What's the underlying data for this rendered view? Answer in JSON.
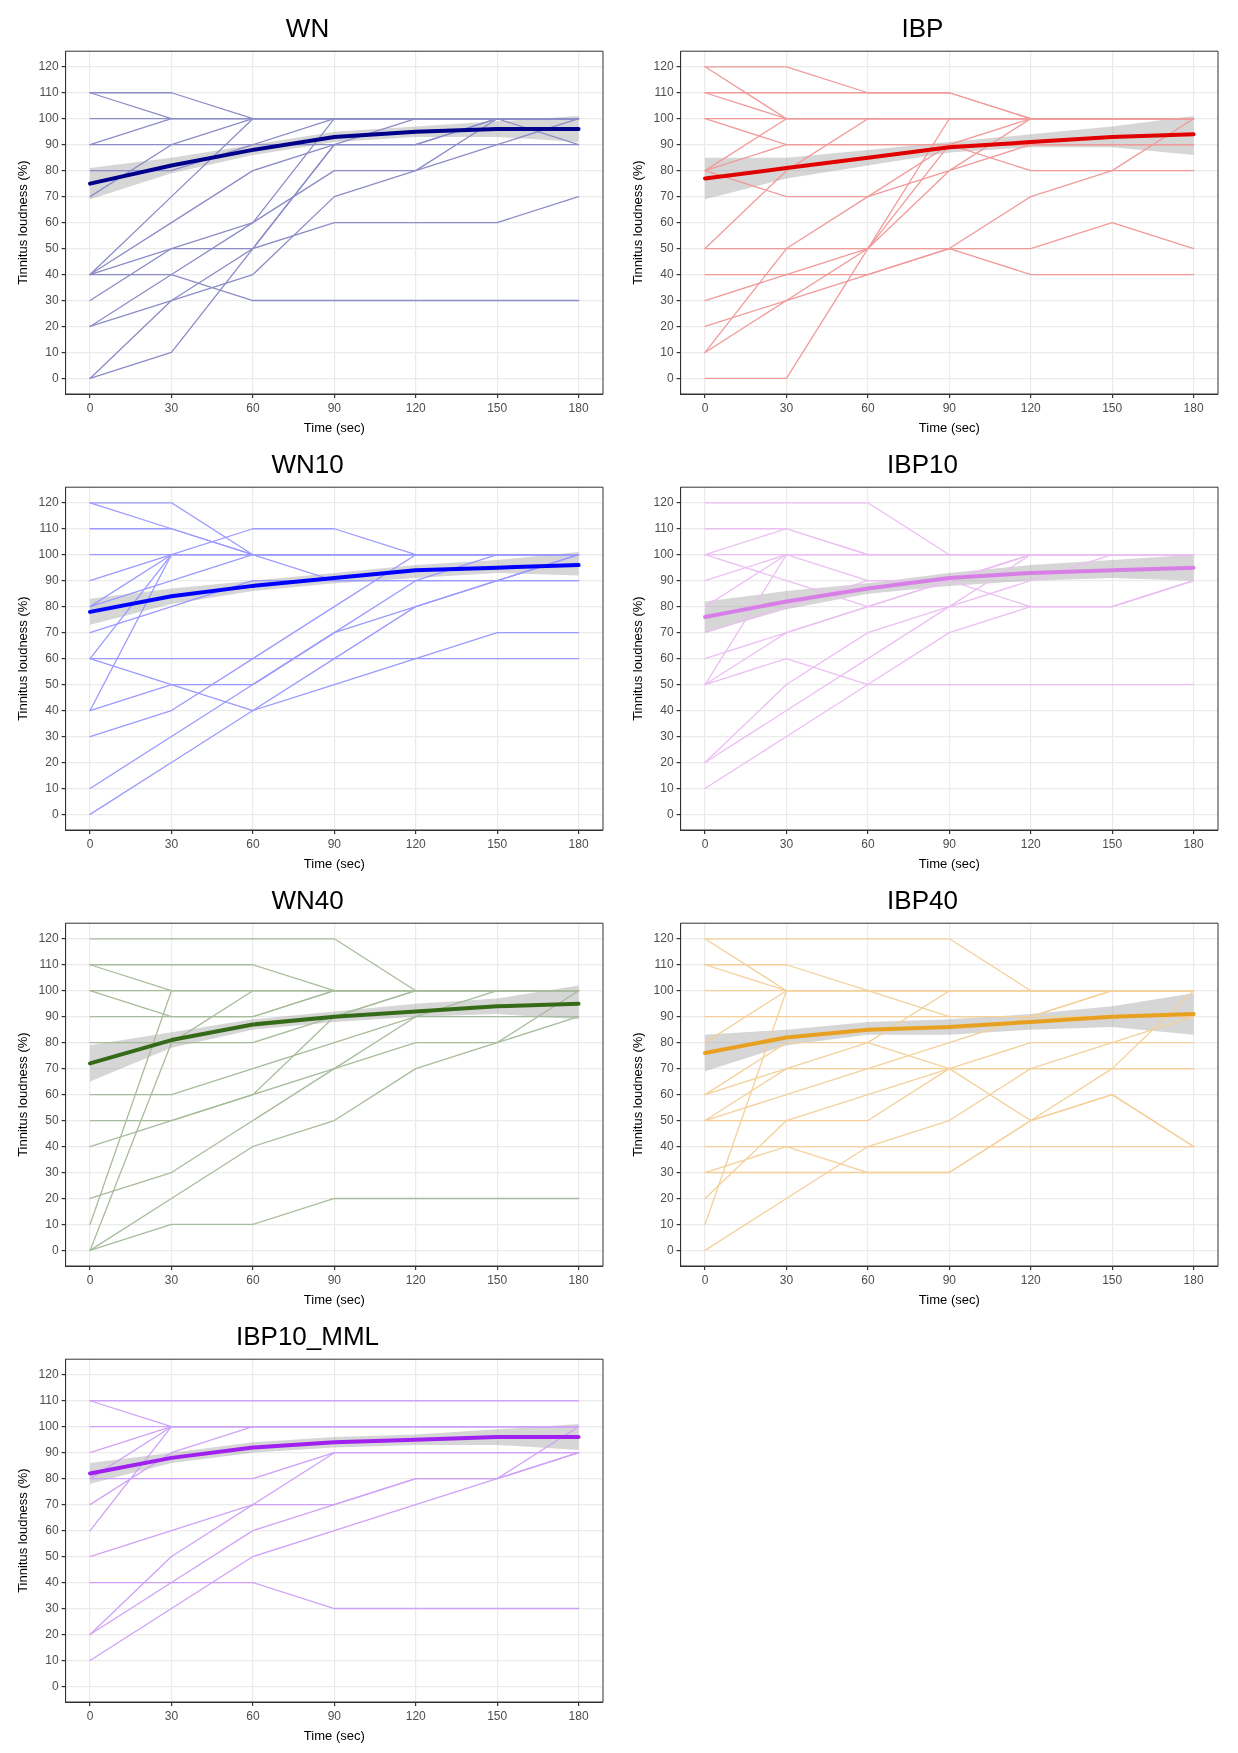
{
  "chart_data": [
    {
      "type": "line",
      "title": "WN",
      "xlabel": "Time (sec)",
      "ylabel": "Tinnitus loudness (%)",
      "x": [
        0,
        30,
        60,
        90,
        120,
        150,
        180
      ],
      "xlim": [
        -9,
        189
      ],
      "ylim": [
        -6,
        126
      ],
      "xticks": [
        0,
        30,
        60,
        90,
        120,
        150,
        180
      ],
      "yticks": [
        0,
        10,
        20,
        30,
        40,
        50,
        60,
        70,
        80,
        90,
        100,
        110,
        120
      ],
      "grid": true,
      "legend": false,
      "marker": "none",
      "series": [
        {
          "color": "#8c8cc8",
          "values": [
            110,
            110,
            100,
            100,
            100,
            100,
            100
          ]
        },
        {
          "color": "#8c8cc8",
          "values": [
            110,
            100,
            100,
            100,
            100,
            100,
            100
          ]
        },
        {
          "color": "#8c8cc8",
          "values": [
            100,
            100,
            100,
            100,
            100,
            100,
            100
          ]
        },
        {
          "color": "#8c8cc8",
          "values": [
            90,
            100,
            100,
            100,
            100,
            100,
            100
          ]
        },
        {
          "color": "#8c8cc8",
          "values": [
            90,
            90,
            90,
            90,
            90,
            100,
            90
          ]
        },
        {
          "color": "#8c8cc8",
          "values": [
            70,
            90,
            100,
            100,
            100,
            100,
            100
          ]
        },
        {
          "color": "#8c8cc8",
          "values": [
            80,
            80,
            90,
            100,
            100,
            100,
            100
          ]
        },
        {
          "color": "#8c8cc8",
          "values": [
            40,
            70,
            100,
            100,
            100,
            100,
            100
          ]
        },
        {
          "color": "#8c8cc8",
          "values": [
            40,
            60,
            80,
            90,
            90,
            100,
            100
          ]
        },
        {
          "color": "#8c8cc8",
          "values": [
            40,
            50,
            50,
            60,
            60,
            60,
            70
          ]
        },
        {
          "color": "#8c8cc8",
          "values": [
            40,
            40,
            30,
            30,
            30,
            30,
            30
          ]
        },
        {
          "color": "#8c8cc8",
          "values": [
            30,
            50,
            60,
            80,
            80,
            100,
            100
          ]
        },
        {
          "color": "#8c8cc8",
          "values": [
            20,
            40,
            60,
            100,
            100,
            100,
            100
          ]
        },
        {
          "color": "#8c8cc8",
          "values": [
            20,
            30,
            40,
            70,
            80,
            90,
            100
          ]
        },
        {
          "color": "#8c8cc8",
          "values": [
            0,
            30,
            50,
            90,
            100,
            100,
            100
          ]
        },
        {
          "color": "#8c8cc8",
          "values": [
            0,
            10,
            50,
            90,
            90,
            90,
            90
          ]
        },
        {
          "type": "line",
          "color": "#00008b",
          "values": [
            75,
            82,
            88,
            93,
            95,
            96,
            96
          ],
          "lower": [
            69,
            79,
            86,
            91,
            93,
            93,
            91
          ],
          "upper": [
            81,
            85,
            90,
            95,
            97,
            99,
            101
          ]
        }
      ]
    },
    {
      "type": "line",
      "title": "IBP",
      "xlabel": "Time (sec)",
      "ylabel": "Tinnitus loudness (%)",
      "x": [
        0,
        30,
        60,
        90,
        120,
        150,
        180
      ],
      "xlim": [
        -9,
        189
      ],
      "ylim": [
        -6,
        126
      ],
      "xticks": [
        0,
        30,
        60,
        90,
        120,
        150,
        180
      ],
      "yticks": [
        0,
        10,
        20,
        30,
        40,
        50,
        60,
        70,
        80,
        90,
        100,
        110,
        120
      ],
      "grid": true,
      "legend": false,
      "marker": "none",
      "series": [
        {
          "color": "#f09a9a",
          "values": [
            120,
            120,
            110,
            110,
            100,
            100,
            100
          ]
        },
        {
          "color": "#f09a9a",
          "values": [
            120,
            100,
            100,
            100,
            100,
            100,
            100
          ]
        },
        {
          "color": "#f09a9a",
          "values": [
            110,
            110,
            110,
            110,
            100,
            100,
            100
          ]
        },
        {
          "color": "#f09a9a",
          "values": [
            110,
            100,
            100,
            100,
            100,
            100,
            100
          ]
        },
        {
          "color": "#f09a9a",
          "values": [
            100,
            100,
            100,
            100,
            100,
            100,
            100
          ]
        },
        {
          "color": "#f09a9a",
          "values": [
            100,
            90,
            90,
            90,
            80,
            80,
            80
          ]
        },
        {
          "color": "#f09a9a",
          "values": [
            80,
            100,
            100,
            100,
            100,
            100,
            100
          ]
        },
        {
          "color": "#f09a9a",
          "values": [
            80,
            90,
            90,
            90,
            90,
            90,
            90
          ]
        },
        {
          "color": "#f09a9a",
          "values": [
            80,
            70,
            70,
            80,
            90,
            90,
            90
          ]
        },
        {
          "color": "#f09a9a",
          "values": [
            50,
            50,
            50,
            50,
            50,
            60,
            50
          ]
        },
        {
          "color": "#f09a9a",
          "values": [
            50,
            80,
            100,
            100,
            100,
            100,
            100
          ]
        },
        {
          "color": "#f09a9a",
          "values": [
            40,
            40,
            40,
            50,
            70,
            80,
            100
          ]
        },
        {
          "color": "#f09a9a",
          "values": [
            30,
            40,
            50,
            80,
            100,
            100,
            100
          ]
        },
        {
          "color": "#f09a9a",
          "values": [
            20,
            30,
            50,
            90,
            100,
            100,
            100
          ]
        },
        {
          "color": "#f09a9a",
          "values": [
            10,
            30,
            40,
            50,
            40,
            40,
            40
          ]
        },
        {
          "color": "#f09a9a",
          "values": [
            10,
            50,
            70,
            90,
            90,
            90,
            90
          ]
        },
        {
          "color": "#f09a9a",
          "values": [
            0,
            0,
            50,
            100,
            100,
            100,
            100
          ]
        },
        {
          "type": "line",
          "color": "#e00000",
          "values": [
            77,
            81,
            85,
            89,
            91,
            93,
            94
          ],
          "lower": [
            69,
            77,
            82,
            87,
            89,
            89,
            86
          ],
          "upper": [
            85,
            85,
            88,
            91,
            94,
            97,
            101
          ]
        }
      ]
    },
    {
      "type": "line",
      "title": "WN10",
      "xlabel": "Time (sec)",
      "ylabel": "Tinnitus loudness (%)",
      "x": [
        0,
        30,
        60,
        90,
        120,
        150,
        180
      ],
      "xlim": [
        -9,
        189
      ],
      "ylim": [
        -6,
        126
      ],
      "xticks": [
        0,
        30,
        60,
        90,
        120,
        150,
        180
      ],
      "yticks": [
        0,
        10,
        20,
        30,
        40,
        50,
        60,
        70,
        80,
        90,
        100,
        110,
        120
      ],
      "grid": true,
      "legend": false,
      "marker": "none",
      "series": [
        {
          "color": "#9a9aff",
          "values": [
            120,
            120,
            100,
            100,
            100,
            100,
            100
          ]
        },
        {
          "color": "#9a9aff",
          "values": [
            120,
            110,
            100,
            100,
            100,
            100,
            100
          ]
        },
        {
          "color": "#9a9aff",
          "values": [
            110,
            110,
            100,
            90,
            90,
            90,
            90
          ]
        },
        {
          "color": "#9a9aff",
          "values": [
            100,
            100,
            100,
            100,
            100,
            100,
            100
          ]
        },
        {
          "color": "#9a9aff",
          "values": [
            90,
            100,
            100,
            100,
            100,
            100,
            100
          ]
        },
        {
          "color": "#9a9aff",
          "values": [
            80,
            100,
            100,
            100,
            100,
            100,
            100
          ]
        },
        {
          "color": "#9a9aff",
          "values": [
            80,
            90,
            100,
            100,
            100,
            100,
            100
          ]
        },
        {
          "color": "#9a9aff",
          "values": [
            70,
            80,
            90,
            90,
            90,
            90,
            90
          ]
        },
        {
          "color": "#9a9aff",
          "values": [
            60,
            100,
            110,
            110,
            100,
            100,
            100
          ]
        },
        {
          "color": "#9a9aff",
          "values": [
            60,
            60,
            60,
            60,
            60,
            60,
            60
          ]
        },
        {
          "color": "#9a9aff",
          "values": [
            60,
            50,
            40,
            60,
            80,
            90,
            100
          ]
        },
        {
          "color": "#9a9aff",
          "values": [
            40,
            50,
            50,
            70,
            90,
            100,
            100
          ]
        },
        {
          "color": "#9a9aff",
          "values": [
            40,
            100,
            100,
            100,
            100,
            100,
            100
          ]
        },
        {
          "color": "#9a9aff",
          "values": [
            30,
            40,
            60,
            80,
            100,
            100,
            100
          ]
        },
        {
          "color": "#9a9aff",
          "values": [
            10,
            30,
            50,
            70,
            80,
            90,
            100
          ]
        },
        {
          "color": "#9a9aff",
          "values": [
            0,
            20,
            40,
            50,
            60,
            70,
            70
          ]
        },
        {
          "type": "line",
          "color": "#0000ff",
          "values": [
            78,
            84,
            88,
            91,
            94,
            95,
            96
          ],
          "lower": [
            73,
            81,
            86,
            89,
            91,
            93,
            92
          ],
          "upper": [
            83,
            87,
            90,
            93,
            96,
            98,
            101
          ]
        }
      ]
    },
    {
      "type": "line",
      "title": "IBP10",
      "xlabel": "Time (sec)",
      "ylabel": "Tinnitus loudness (%)",
      "x": [
        0,
        30,
        60,
        90,
        120,
        150,
        180
      ],
      "xlim": [
        -9,
        189
      ],
      "ylim": [
        -6,
        126
      ],
      "xticks": [
        0,
        30,
        60,
        90,
        120,
        150,
        180
      ],
      "yticks": [
        0,
        10,
        20,
        30,
        40,
        50,
        60,
        70,
        80,
        90,
        100,
        110,
        120
      ],
      "grid": true,
      "legend": false,
      "marker": "none",
      "series": [
        {
          "color": "#ecbff3",
          "values": [
            120,
            120,
            120,
            100,
            100,
            100,
            100
          ]
        },
        {
          "color": "#ecbff3",
          "values": [
            110,
            110,
            100,
            100,
            100,
            100,
            100
          ]
        },
        {
          "color": "#ecbff3",
          "values": [
            100,
            110,
            100,
            100,
            100,
            100,
            100
          ]
        },
        {
          "color": "#ecbff3",
          "values": [
            100,
            100,
            100,
            100,
            100,
            100,
            100
          ]
        },
        {
          "color": "#ecbff3",
          "values": [
            100,
            90,
            80,
            80,
            80,
            80,
            90
          ]
        },
        {
          "color": "#ecbff3",
          "values": [
            90,
            100,
            90,
            90,
            100,
            100,
            100
          ]
        },
        {
          "color": "#ecbff3",
          "values": [
            80,
            100,
            100,
            100,
            100,
            100,
            100
          ]
        },
        {
          "color": "#ecbff3",
          "values": [
            70,
            80,
            90,
            90,
            80,
            80,
            90
          ]
        },
        {
          "color": "#ecbff3",
          "values": [
            60,
            70,
            80,
            90,
            100,
            100,
            100
          ]
        },
        {
          "color": "#ecbff3",
          "values": [
            50,
            60,
            50,
            50,
            50,
            50,
            50
          ]
        },
        {
          "color": "#ecbff3",
          "values": [
            50,
            70,
            80,
            90,
            100,
            100,
            100
          ]
        },
        {
          "color": "#ecbff3",
          "values": [
            50,
            100,
            100,
            100,
            100,
            100,
            100
          ]
        },
        {
          "color": "#ecbff3",
          "values": [
            20,
            40,
            60,
            80,
            100,
            100,
            100
          ]
        },
        {
          "color": "#ecbff3",
          "values": [
            20,
            50,
            70,
            80,
            90,
            100,
            100
          ]
        },
        {
          "color": "#ecbff3",
          "values": [
            10,
            30,
            50,
            70,
            80,
            80,
            90
          ]
        },
        {
          "type": "line",
          "color": "#d77fe6",
          "values": [
            76,
            82,
            87,
            91,
            93,
            94,
            95
          ],
          "lower": [
            70,
            79,
            85,
            88,
            90,
            91,
            90
          ],
          "upper": [
            82,
            86,
            89,
            93,
            96,
            98,
            100
          ]
        }
      ]
    },
    {
      "type": "line",
      "title": "WN40",
      "xlabel": "Time (sec)",
      "ylabel": "Tinnitus loudness (%)",
      "x": [
        0,
        30,
        60,
        90,
        120,
        150,
        180
      ],
      "xlim": [
        -9,
        189
      ],
      "ylim": [
        -6,
        126
      ],
      "xticks": [
        0,
        30,
        60,
        90,
        120,
        150,
        180
      ],
      "yticks": [
        0,
        10,
        20,
        30,
        40,
        50,
        60,
        70,
        80,
        90,
        100,
        110,
        120
      ],
      "grid": true,
      "legend": false,
      "marker": "none",
      "series": [
        {
          "color": "#a7bc9c",
          "values": [
            120,
            120,
            120,
            120,
            100,
            100,
            100
          ]
        },
        {
          "color": "#a7bc9c",
          "values": [
            110,
            110,
            110,
            100,
            100,
            100,
            100
          ]
        },
        {
          "color": "#a7bc9c",
          "values": [
            110,
            100,
            100,
            100,
            100,
            100,
            100
          ]
        },
        {
          "color": "#a7bc9c",
          "values": [
            100,
            100,
            100,
            100,
            100,
            100,
            100
          ]
        },
        {
          "color": "#a7bc9c",
          "values": [
            100,
            90,
            90,
            100,
            100,
            100,
            100
          ]
        },
        {
          "color": "#a7bc9c",
          "values": [
            90,
            90,
            90,
            100,
            100,
            100,
            100
          ]
        },
        {
          "color": "#a7bc9c",
          "values": [
            80,
            80,
            80,
            90,
            100,
            100,
            100
          ]
        },
        {
          "color": "#a7bc9c",
          "values": [
            60,
            60,
            70,
            80,
            90,
            90,
            90
          ]
        },
        {
          "color": "#a7bc9c",
          "values": [
            50,
            50,
            60,
            70,
            80,
            80,
            90
          ]
        },
        {
          "color": "#a7bc9c",
          "values": [
            40,
            50,
            60,
            90,
            100,
            100,
            100
          ]
        },
        {
          "color": "#a7bc9c",
          "values": [
            20,
            30,
            50,
            70,
            90,
            100,
            100
          ]
        },
        {
          "color": "#a7bc9c",
          "values": [
            10,
            100,
            100,
            100,
            100,
            100,
            100
          ]
        },
        {
          "color": "#a7bc9c",
          "values": [
            0,
            80,
            100,
            100,
            100,
            100,
            100
          ]
        },
        {
          "color": "#a7bc9c",
          "values": [
            0,
            20,
            40,
            50,
            70,
            80,
            100
          ]
        },
        {
          "color": "#a7bc9c",
          "values": [
            0,
            10,
            10,
            20,
            20,
            20,
            20
          ]
        },
        {
          "type": "line",
          "color": "#356b18",
          "values": [
            72,
            81,
            87,
            90,
            92,
            94,
            95
          ],
          "lower": [
            65,
            78,
            85,
            88,
            90,
            91,
            89
          ],
          "upper": [
            79,
            84,
            89,
            92,
            95,
            97,
            102
          ]
        }
      ]
    },
    {
      "type": "line",
      "title": "IBP40",
      "xlabel": "Time (sec)",
      "ylabel": "Tinnitus loudness (%)",
      "x": [
        0,
        30,
        60,
        90,
        120,
        150,
        180
      ],
      "xlim": [
        -9,
        189
      ],
      "ylim": [
        -6,
        126
      ],
      "xticks": [
        0,
        30,
        60,
        90,
        120,
        150,
        180
      ],
      "yticks": [
        0,
        10,
        20,
        30,
        40,
        50,
        60,
        70,
        80,
        90,
        100,
        110,
        120
      ],
      "grid": true,
      "legend": false,
      "marker": "none",
      "series": [
        {
          "color": "#f4d09a",
          "values": [
            120,
            120,
            120,
            120,
            100,
            100,
            100
          ]
        },
        {
          "color": "#f4d09a",
          "values": [
            120,
            100,
            100,
            100,
            100,
            100,
            100
          ]
        },
        {
          "color": "#f4d09a",
          "values": [
            110,
            110,
            100,
            90,
            90,
            100,
            100
          ]
        },
        {
          "color": "#f4d09a",
          "values": [
            110,
            100,
            100,
            100,
            100,
            100,
            100
          ]
        },
        {
          "color": "#f4d09a",
          "values": [
            100,
            100,
            100,
            100,
            100,
            100,
            100
          ]
        },
        {
          "color": "#f4d09a",
          "values": [
            90,
            90,
            90,
            90,
            90,
            90,
            90
          ]
        },
        {
          "color": "#f4d09a",
          "values": [
            80,
            100,
            100,
            100,
            100,
            100,
            100
          ]
        },
        {
          "color": "#f4d09a",
          "values": [
            60,
            70,
            70,
            80,
            90,
            100,
            100
          ]
        },
        {
          "color": "#f4d09a",
          "values": [
            60,
            80,
            80,
            70,
            50,
            60,
            40
          ]
        },
        {
          "color": "#f4d09a",
          "values": [
            50,
            70,
            80,
            100,
            100,
            100,
            100
          ]
        },
        {
          "color": "#f4d09a",
          "values": [
            50,
            60,
            70,
            70,
            70,
            70,
            70
          ]
        },
        {
          "color": "#f4d09a",
          "values": [
            50,
            50,
            50,
            70,
            80,
            80,
            80
          ]
        },
        {
          "color": "#f4d09a",
          "values": [
            40,
            40,
            40,
            40,
            40,
            40,
            40
          ]
        },
        {
          "color": "#f4d09a",
          "values": [
            30,
            30,
            30,
            30,
            50,
            70,
            100
          ]
        },
        {
          "color": "#f4d09a",
          "values": [
            30,
            40,
            30,
            30,
            50,
            60,
            40
          ]
        },
        {
          "color": "#f4d09a",
          "values": [
            20,
            50,
            60,
            70,
            70,
            70,
            70
          ]
        },
        {
          "color": "#f4d09a",
          "values": [
            10,
            100,
            100,
            100,
            100,
            100,
            100
          ]
        },
        {
          "color": "#f4d09a",
          "values": [
            0,
            20,
            40,
            50,
            70,
            80,
            90
          ]
        },
        {
          "type": "line",
          "color": "#e8a020",
          "values": [
            76,
            82,
            85,
            86,
            88,
            90,
            91
          ],
          "lower": [
            69,
            79,
            83,
            83,
            85,
            86,
            83
          ],
          "upper": [
            83,
            85,
            88,
            89,
            91,
            94,
            99
          ]
        }
      ]
    },
    {
      "type": "line",
      "title": "IBP10_MML",
      "xlabel": "Time (sec)",
      "ylabel": "Tinnitus loudness (%)",
      "x": [
        0,
        30,
        60,
        90,
        120,
        150,
        180
      ],
      "xlim": [
        -9,
        189
      ],
      "ylim": [
        -6,
        126
      ],
      "xticks": [
        0,
        30,
        60,
        90,
        120,
        150,
        180
      ],
      "yticks": [
        0,
        10,
        20,
        30,
        40,
        50,
        60,
        70,
        80,
        90,
        100,
        110,
        120
      ],
      "grid": true,
      "legend": false,
      "marker": "none",
      "series": [
        {
          "color": "#cfa2f7",
          "values": [
            110,
            110,
            110,
            110,
            110,
            110,
            110
          ]
        },
        {
          "color": "#cfa2f7",
          "values": [
            110,
            100,
            100,
            100,
            100,
            100,
            100
          ]
        },
        {
          "color": "#cfa2f7",
          "values": [
            100,
            100,
            100,
            100,
            100,
            100,
            100
          ]
        },
        {
          "color": "#cfa2f7",
          "values": [
            90,
            100,
            100,
            100,
            100,
            100,
            100
          ]
        },
        {
          "color": "#cfa2f7",
          "values": [
            80,
            100,
            100,
            100,
            100,
            100,
            100
          ]
        },
        {
          "color": "#cfa2f7",
          "values": [
            80,
            80,
            80,
            90,
            90,
            90,
            90
          ]
        },
        {
          "color": "#cfa2f7",
          "values": [
            70,
            90,
            100,
            100,
            100,
            100,
            100
          ]
        },
        {
          "color": "#cfa2f7",
          "values": [
            60,
            100,
            100,
            100,
            100,
            100,
            100
          ]
        },
        {
          "color": "#cfa2f7",
          "values": [
            50,
            60,
            70,
            70,
            80,
            80,
            100
          ]
        },
        {
          "color": "#cfa2f7",
          "values": [
            40,
            40,
            40,
            30,
            30,
            30,
            30
          ]
        },
        {
          "color": "#cfa2f7",
          "values": [
            20,
            50,
            70,
            90,
            90,
            90,
            90
          ]
        },
        {
          "color": "#cfa2f7",
          "values": [
            20,
            40,
            60,
            70,
            80,
            80,
            90
          ]
        },
        {
          "color": "#cfa2f7",
          "values": [
            10,
            30,
            50,
            60,
            70,
            80,
            90
          ]
        },
        {
          "type": "line",
          "color": "#a020f0",
          "values": [
            82,
            88,
            92,
            94,
            95,
            96,
            96
          ],
          "lower": [
            78,
            86,
            90,
            92,
            93,
            93,
            91
          ],
          "upper": [
            86,
            90,
            94,
            96,
            97,
            99,
            101
          ]
        }
      ]
    }
  ]
}
